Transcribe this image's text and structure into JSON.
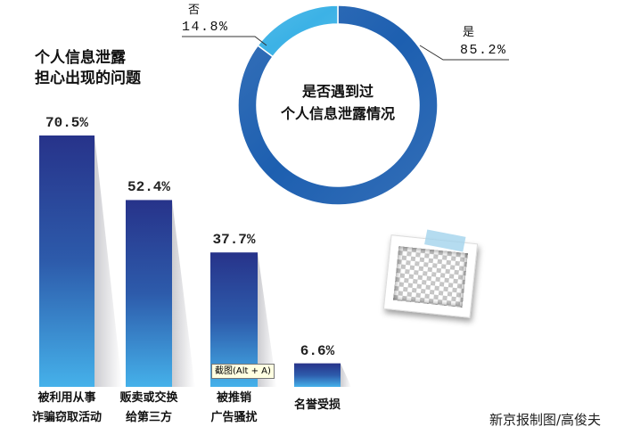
{
  "chart_data": [
    {
      "type": "bar",
      "title_lines": [
        "个人信息泄露",
        "担心出现的问题"
      ],
      "categories": [
        "被利用从事\n诈骗窃取活动",
        "贩卖或交换\n给第三方",
        "被推销\n广告骚扰",
        "名誉受损"
      ],
      "values": [
        70.5,
        52.4,
        37.7,
        6.6
      ],
      "unit": "%",
      "xlabel": "",
      "ylabel": "",
      "grid": false,
      "colors": {
        "bar_top": "#27338a",
        "bar_mid": "#2d5bab",
        "bar_bottom": "#45b1ea",
        "shadow": "#c6c6cb"
      }
    },
    {
      "type": "pie",
      "donut": true,
      "title_lines": [
        "是否遇到过",
        "个人信息泄露情况"
      ],
      "slices": [
        {
          "label": "是",
          "value": 85.2,
          "color": "#1d5fb0"
        },
        {
          "label": "否",
          "value": 14.8,
          "color": "#3cb2e6"
        }
      ],
      "unit": "%"
    }
  ],
  "tooltip": {
    "text": "截图(Alt + A)"
  },
  "credit": "新京报制图/高俊夫",
  "icons": {
    "photo_placeholder": "photo-placeholder-icon"
  }
}
